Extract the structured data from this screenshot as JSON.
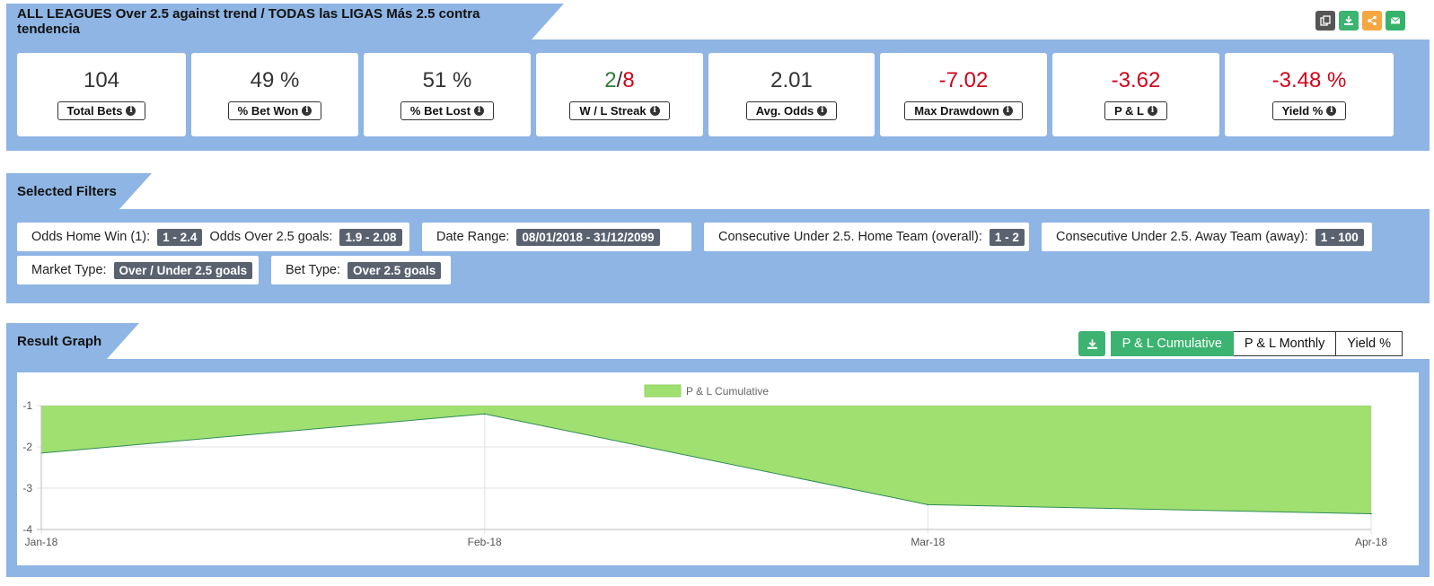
{
  "header": {
    "title": "ALL LEAGUES Over 2.5 against trend / TODAS las LIGAS Más 2.5 contra tendencia",
    "icons": [
      "copy-icon",
      "download-icon",
      "share-icon",
      "email-icon"
    ]
  },
  "stats": [
    {
      "value": "104",
      "label": "Total Bets"
    },
    {
      "value": "49 %",
      "label": "% Bet Won"
    },
    {
      "value": "51 %",
      "label": "% Bet Lost"
    },
    {
      "value_win": "2",
      "value_sep": "/",
      "value_loss": "8",
      "label": "W / L Streak"
    },
    {
      "value": "2.01",
      "label": "Avg. Odds"
    },
    {
      "value": "-7.02",
      "label": "Max Drawdown"
    },
    {
      "value": "-3.62",
      "label": "P & L"
    },
    {
      "value": "-3.48 %",
      "label": "Yield %"
    }
  ],
  "filters": {
    "title": "Selected Filters",
    "chips": [
      {
        "label1": "Odds Home Win (1):",
        "badge1": "1 - 2.4",
        "label2": "Odds Over 2.5 goals:",
        "badge2": "1.9 - 2.08"
      },
      {
        "label1": "Date Range:",
        "badge1": "08/01/2018 - 31/12/2099"
      },
      {
        "label1": "Consecutive Under 2.5. Home Team (overall):",
        "badge1": "1 - 2"
      },
      {
        "label1": "Consecutive Under 2.5. Away Team (away):",
        "badge1": "1 - 100"
      },
      {
        "label1": "Market Type:",
        "badge1": "Over / Under 2.5 goals"
      },
      {
        "label1": "Bet Type:",
        "badge1": "Over 2.5 goals"
      }
    ]
  },
  "graph": {
    "title": "Result Graph",
    "buttons": [
      "P & L Cumulative",
      "P & L Monthly",
      "Yield %"
    ],
    "active_button": "P & L Cumulative"
  },
  "chart_data": {
    "type": "area",
    "legend": "P & L Cumulative",
    "legend_position": "top-center",
    "categories": [
      "Jan-18",
      "Feb-18",
      "Mar-18",
      "Apr-18"
    ],
    "series": [
      {
        "name": "P & L Cumulative",
        "values": [
          -2.15,
          -1.2,
          -3.4,
          -3.62
        ]
      }
    ],
    "yticks": [
      -1,
      -2,
      -3,
      -4
    ],
    "ylim": [
      -4,
      -1
    ],
    "fill_baseline": -1,
    "fill_color": "#a0e070",
    "line_color": "#2e8b57",
    "grid": true
  }
}
